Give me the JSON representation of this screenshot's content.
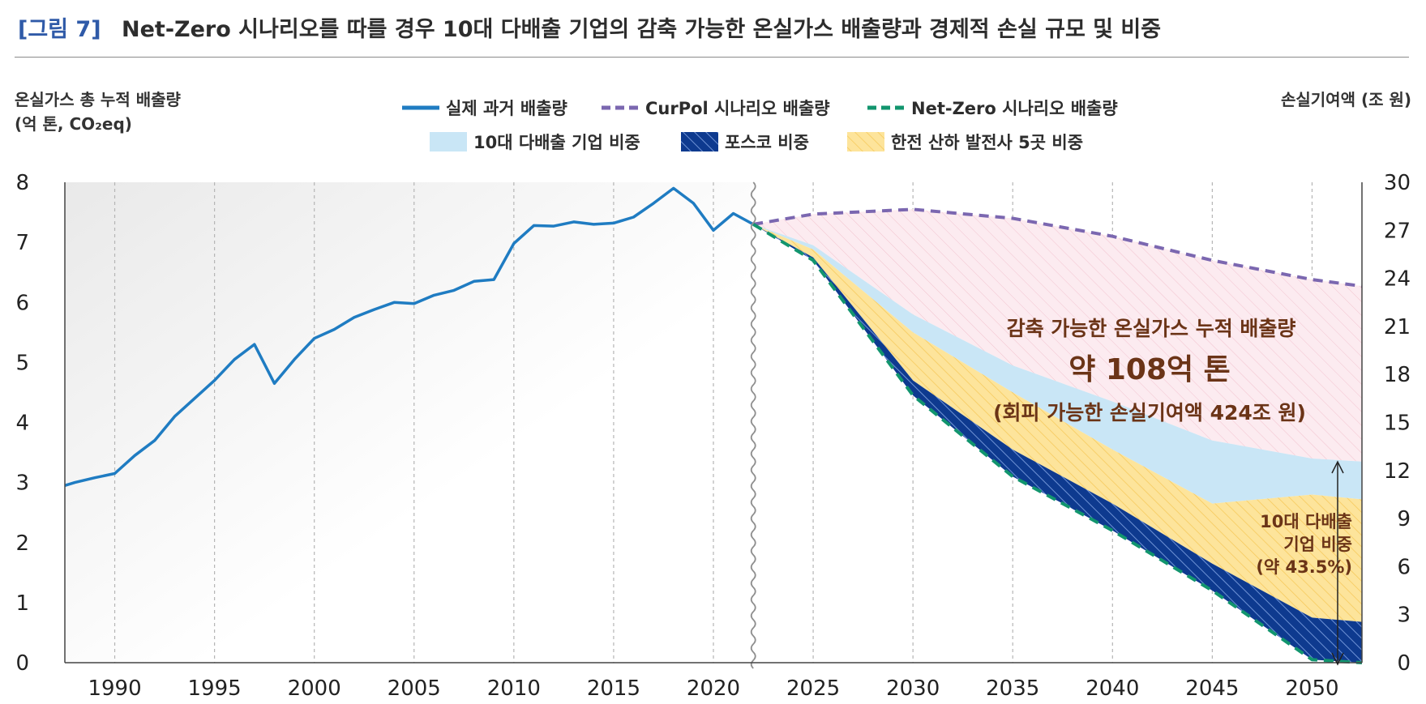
{
  "header": {
    "figure_label": "[그림 7]",
    "title": "Net-Zero 시나리오를 따를 경우 10대 다배출 기업의 감축 가능한 온실가스 배출량과 경제적 손실 규모 및 비중"
  },
  "axis_titles": {
    "left_line1": "온실가스 총 누적 배출량",
    "left_line2": "(억 톤, CO₂eq)",
    "right": "손실기여액 (조 원)"
  },
  "colors": {
    "actual": "#1f7cc2",
    "curpol": "#7b67b0",
    "netzero": "#12956e",
    "top10": "#c9e6f6",
    "posco": "#0e3a8f",
    "kepco": "#fde49b",
    "avoidable": "#fbe8ee"
  },
  "annotations": {
    "avoidable_title": "감축 가능한 온실가스 누적 배출량",
    "avoidable_value": "약 108억 톤",
    "avoidable_sub": "(회피 가능한 손실기여액 424조 원)",
    "share_line1": "10대 다배출",
    "share_line2": "기업 비중",
    "share_line3": "(약 43.5%)"
  },
  "chart_data": {
    "type": "line",
    "title": "Net-Zero 시나리오를 따를 경우 10대 다배출 기업의 감축 가능한 온실가스 배출량과 경제적 손실 규모 및 비중",
    "ylabel": "온실가스 총 누적 배출량 (억 톤, CO₂eq)",
    "y2label": "손실기여액 (조 원)",
    "xlim": [
      1987.5,
      2052.5
    ],
    "ylim": [
      0,
      8
    ],
    "y2lim": [
      0,
      30
    ],
    "x_ticks": [
      1990,
      1995,
      2000,
      2005,
      2010,
      2015,
      2020,
      2025,
      2030,
      2035,
      2040,
      2045,
      2050
    ],
    "y_ticks": [
      0,
      1,
      2,
      3,
      4,
      5,
      6,
      7,
      8
    ],
    "y2_ticks": [
      0,
      3,
      6,
      9,
      12,
      15,
      18,
      21,
      24,
      27,
      30
    ],
    "grid": "vertical dashed",
    "legend": "top-center",
    "legend_entries": {
      "actual": "실제 과거 배출량",
      "curpol": "CurPol 시나리오 배출량",
      "netzero": "Net-Zero 시나리오 배출량",
      "top10": "10대 다배출 기업 비중",
      "posco": "포스코 비중",
      "kepco": "한전 산하 발전사 5곳 비중"
    },
    "series": [
      {
        "key": "actual",
        "name": "실제 과거 배출량",
        "x": [
          1987.5,
          1988,
          1989,
          1990,
          1991,
          1992,
          1993,
          1994,
          1995,
          1996,
          1997,
          1998,
          1999,
          2000,
          2001,
          2002,
          2003,
          2004,
          2005,
          2006,
          2007,
          2008,
          2009,
          2010,
          2011,
          2012,
          2013,
          2014,
          2015,
          2016,
          2017,
          2018,
          2019,
          2020,
          2021,
          2022
        ],
        "y": [
          2.95,
          3.0,
          3.08,
          3.15,
          3.45,
          3.7,
          4.1,
          4.4,
          4.7,
          5.05,
          5.3,
          4.65,
          5.05,
          5.4,
          5.55,
          5.75,
          5.88,
          6.0,
          5.98,
          6.12,
          6.2,
          6.35,
          6.38,
          6.98,
          7.28,
          7.27,
          7.34,
          7.3,
          7.32,
          7.42,
          7.65,
          7.9,
          7.65,
          7.2,
          7.48,
          7.3
        ]
      },
      {
        "key": "curpol",
        "name": "CurPol 시나리오 배출량",
        "x": [
          2022,
          2025,
          2030,
          2035,
          2040,
          2045,
          2050,
          2052.5
        ],
        "y": [
          7.3,
          7.47,
          7.55,
          7.4,
          7.1,
          6.7,
          6.38,
          6.27
        ]
      },
      {
        "key": "netzero",
        "name": "Net-Zero 시나리오 배출량",
        "x": [
          2022,
          2025,
          2030,
          2035,
          2040,
          2045,
          2050,
          2052.5
        ],
        "y": [
          7.3,
          6.7,
          4.45,
          3.1,
          2.2,
          1.2,
          0.05,
          0
        ]
      },
      {
        "key": "posco",
        "name": "포스코 비중",
        "x": [
          2022,
          2025,
          2030,
          2035,
          2040,
          2045,
          2050,
          2052.5
        ],
        "y": [
          7.3,
          6.75,
          4.7,
          3.55,
          2.65,
          1.65,
          0.75,
          0.68
        ]
      },
      {
        "key": "kepco",
        "name": "한전 산하 발전사 5곳 비중",
        "x": [
          2022,
          2025,
          2030,
          2035,
          2040,
          2045,
          2050,
          2052.5
        ],
        "y": [
          7.3,
          6.88,
          5.5,
          4.5,
          3.55,
          2.65,
          2.8,
          2.72
        ]
      },
      {
        "key": "top10",
        "name": "10대 다배출 기업 비중",
        "x": [
          2022,
          2025,
          2030,
          2035,
          2040,
          2045,
          2050,
          2052.5
        ],
        "y": [
          7.3,
          6.95,
          5.8,
          4.95,
          4.35,
          3.7,
          3.4,
          3.35
        ]
      }
    ]
  }
}
